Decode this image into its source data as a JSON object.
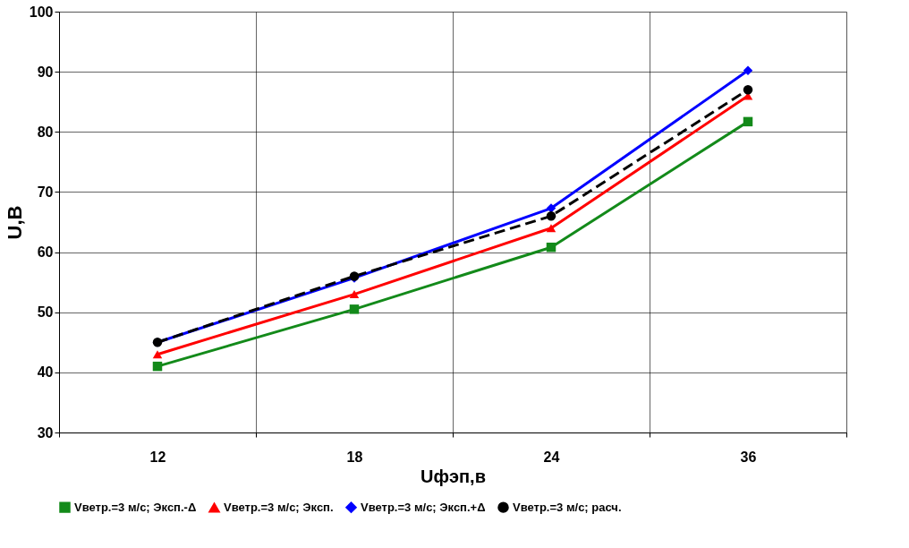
{
  "chart_data": {
    "type": "line",
    "xlabel": "Uфэп,в",
    "ylabel": "U,В",
    "categories": [
      "12",
      "18",
      "24",
      "36"
    ],
    "series": [
      {
        "name": "Vветр.=3 м/с; Эксп.-Δ",
        "color": "#138a1a",
        "marker": "square",
        "line_style": "solid",
        "values": [
          41,
          50.5,
          60.8,
          81.7
        ]
      },
      {
        "name": "Vветр.=3 м/с; Эксп.",
        "color": "#ff0000",
        "marker": "triangle",
        "line_style": "solid",
        "values": [
          43,
          53,
          64,
          86
        ]
      },
      {
        "name": "Vветр.=3 м/с; Эксп.+Δ",
        "color": "#0000ff",
        "marker": "diamond",
        "line_style": "solid",
        "values": [
          45,
          55.7,
          67.3,
          90.2
        ]
      },
      {
        "name": "Vветр.=3 м/с; расч.",
        "color": "#000000",
        "marker": "circle",
        "line_style": "dashed",
        "values": [
          45,
          56,
          66,
          87
        ]
      }
    ],
    "ylim": [
      30,
      100
    ],
    "yticks": [
      30,
      40,
      50,
      60,
      70,
      80,
      90,
      100
    ],
    "grid": true,
    "legend": "bottom"
  }
}
